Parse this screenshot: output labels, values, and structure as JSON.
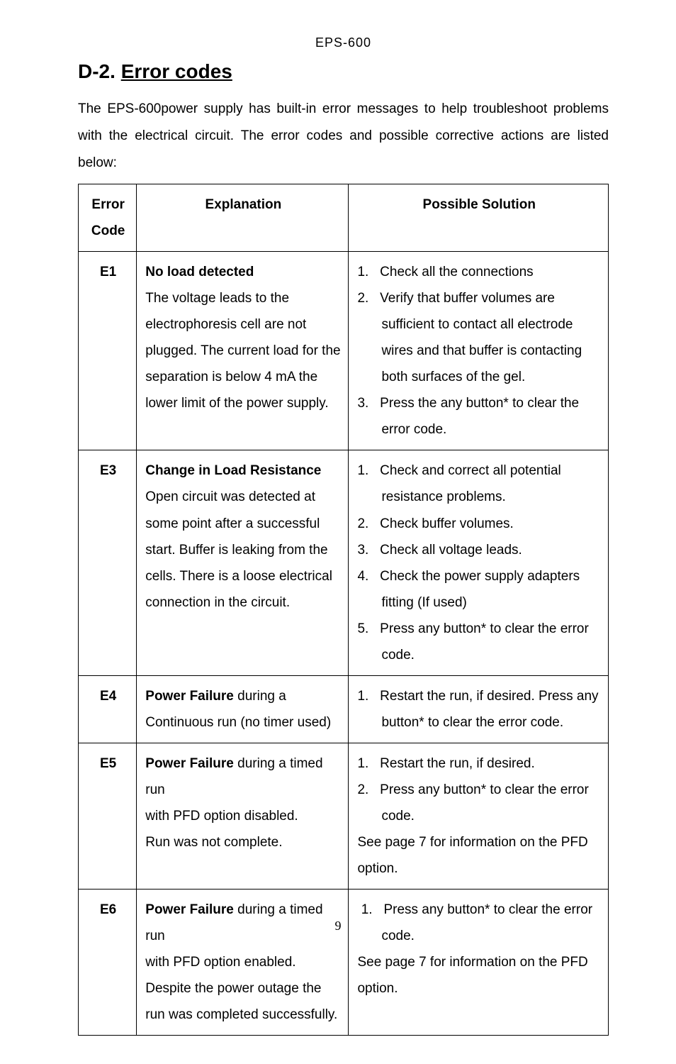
{
  "running_header": "EPS-600",
  "section": {
    "number": "D-2.",
    "title": "Error codes"
  },
  "intro_1": "The EPS-600power supply has built-in error messages to help troubleshoot problems with the",
  "intro_2": "electrical circuit. The error codes and possible corrective actions are listed below:",
  "table": {
    "headers": {
      "code_l1": "Error",
      "code_l2": "Code",
      "explanation": "Explanation",
      "solution": "Possible Solution"
    },
    "rows": {
      "e1": {
        "code": "E1",
        "explanation_bold": "No load detected",
        "explanation_rest": "The voltage leads to the electrophoresis cell are not plugged.\nThe current load for the separation is below 4 mA the lower limit of the power supply.",
        "sol_1_n": "1.",
        "sol_1": "Check all the connections",
        "sol_2_n": "2.",
        "sol_2": "Verify that buffer volumes are sufficient to contact all electrode wires and that buffer is contacting both surfaces of the gel.",
        "sol_3_n": "3.",
        "sol_3": "Press the any button* to clear the error code."
      },
      "e3": {
        "code": "E3",
        "explanation_bold": "Change in Load Resistance",
        "explanation_rest": "Open circuit was detected at some point after a successful start.\nBuffer is leaking from the cells.\nThere is a loose electrical connection in the circuit.",
        "sol_1_n": "1.",
        "sol_1": "Check and correct all potential resistance problems.",
        "sol_2_n": "2.",
        "sol_2": "Check buffer volumes.",
        "sol_3_n": "3.",
        "sol_3": "Check all voltage leads.",
        "sol_4_n": "4.",
        "sol_4": "Check the power supply adapters fitting (If used)",
        "sol_5_n": "5.",
        "sol_5": "Press any button* to clear the error code."
      },
      "e4": {
        "code": "E4",
        "explanation_bold_inline": "Power Failure",
        "explanation_rest_inline": " during a",
        "explanation_line2": "Continuous run (no timer used)",
        "sol_1_n": "1.",
        "sol_1": "Restart the run, if desired. Press any button* to clear the error code."
      },
      "e5": {
        "code": "E5",
        "explanation_bold_inline": "Power Failure",
        "explanation_rest_inline": " during a timed run",
        "explanation_line2": "with PFD option disabled.",
        "explanation_line3": "Run was not complete.",
        "sol_1_n": "1.",
        "sol_1": "Restart the run, if desired.",
        "sol_2_n": "2.",
        "sol_2": "Press any button* to clear the error code.",
        "sol_note": "See page 7 for information on the PFD option."
      },
      "e6": {
        "code": "E6",
        "explanation_bold_inline": "Power Failure",
        "explanation_rest_inline": " during a timed run",
        "explanation_line2": "with PFD option enabled.",
        "explanation_line3": "Despite the power outage the run was completed successfully.",
        "sol_1_n": "1.",
        "sol_1": "Press any button* to clear the error code.",
        "sol_note": "See page 7 for information on the PFD option."
      }
    }
  },
  "page_number": "9",
  "colors": {
    "text": "#000000",
    "background": "#ffffff",
    "border": "#000000"
  },
  "fonts": {
    "body_family": "Arial",
    "body_size_pt": 14,
    "title_size_pt": 21,
    "title_weight": "bold"
  }
}
